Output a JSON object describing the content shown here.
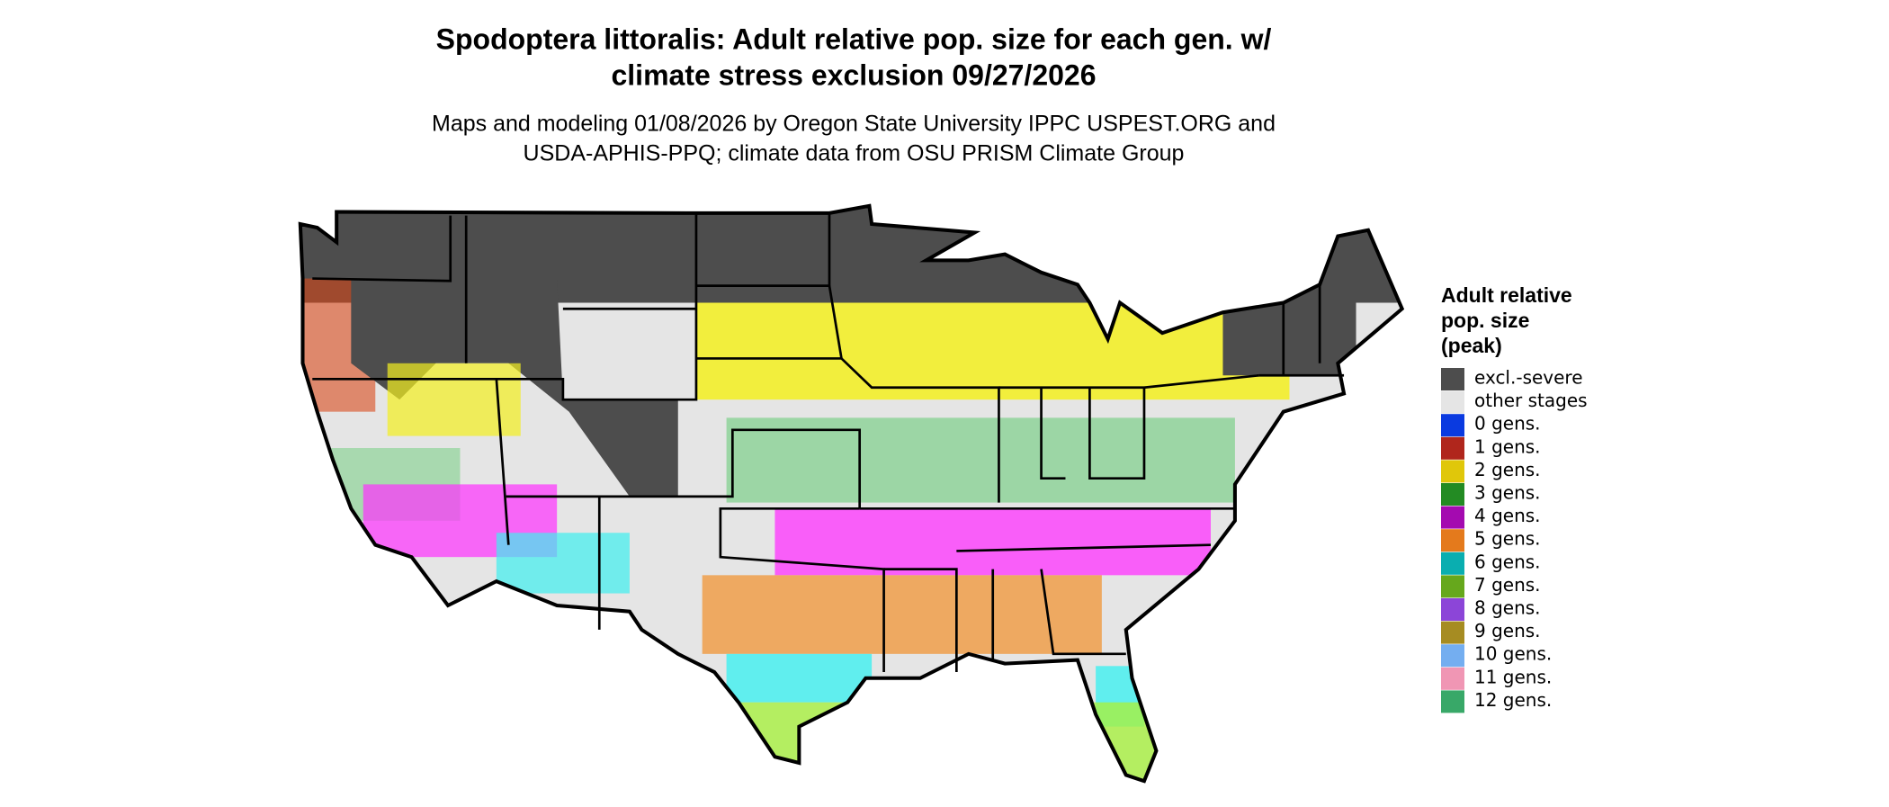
{
  "header": {
    "title": [
      "Spodoptera littoralis: Adult relative pop. size for each gen. w/",
      "climate stress exclusion 09/27/2026"
    ],
    "subtitle": [
      "Maps and modeling 01/08/2026 by Oregon State University IPPC USPEST.ORG and",
      "USDA-APHIS-PPQ; climate data from OSU PRISM Climate Group"
    ]
  },
  "legend": {
    "title": [
      "Adult relative",
      "pop. size",
      "(peak)"
    ],
    "items": [
      {
        "label": "excl.-severe",
        "color": "#4d4d4d"
      },
      {
        "label": "other stages",
        "color": "#e5e5e5"
      },
      {
        "label": "0 gens.",
        "color": "#0a3ae0"
      },
      {
        "label": "1 gens.",
        "color": "#b0261c"
      },
      {
        "label": "2 gens.",
        "color": "#e0c70a"
      },
      {
        "label": "3 gens.",
        "color": "#238b23"
      },
      {
        "label": "4 gens.",
        "color": "#a40ab0"
      },
      {
        "label": "5 gens.",
        "color": "#e47a1c"
      },
      {
        "label": "6 gens.",
        "color": "#0aaeb0"
      },
      {
        "label": "7 gens.",
        "color": "#66a81c"
      },
      {
        "label": "8 gens.",
        "color": "#8c45d8"
      },
      {
        "label": "9 gens.",
        "color": "#a68c22"
      },
      {
        "label": "10 gens.",
        "color": "#74aef0"
      },
      {
        "label": "11 gens.",
        "color": "#f096b4"
      },
      {
        "label": "12 gens.",
        "color": "#38a868"
      }
    ]
  }
}
